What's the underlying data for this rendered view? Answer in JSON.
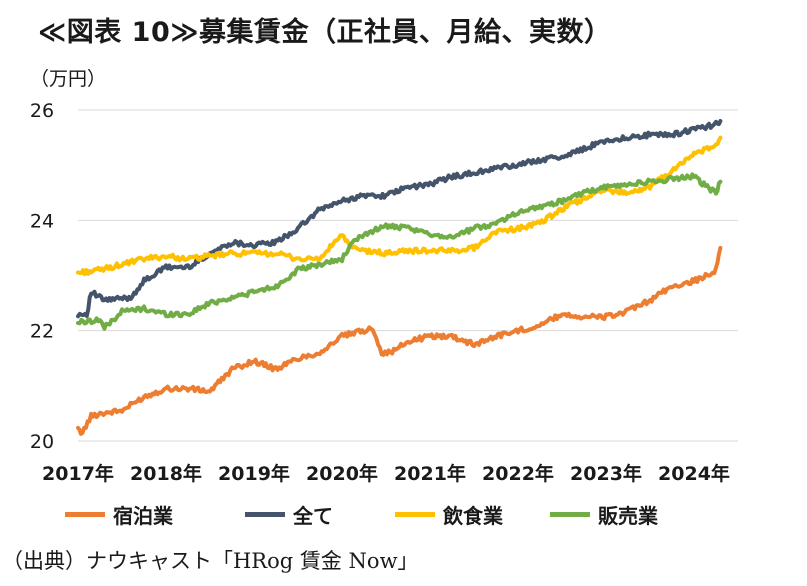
{
  "header": {
    "title": "≪図表 10≫募集賃金（正社員、月給、実数）",
    "unit": "（万円）",
    "source": "（出典）ナウキャスト「HRog 賃金 Now」"
  },
  "chart_data": {
    "type": "line",
    "title": "≪図表 10≫募集賃金（正社員、月給、実数）",
    "ylabel": "（万円）",
    "xlabel": "",
    "ylim": [
      20,
      26
    ],
    "yticks": [
      20,
      22,
      24,
      26
    ],
    "xlim": [
      2017.0,
      2024.5
    ],
    "x_tick_labels": [
      "2017年",
      "2018年",
      "2019年",
      "2020年",
      "2021年",
      "2022年",
      "2023年",
      "2024年"
    ],
    "x_tick_values": [
      2017.0,
      2018.0,
      2019.0,
      2020.0,
      2021.0,
      2022.0,
      2023.0,
      2024.0
    ],
    "grid": "horizontal",
    "legend_position": "bottom",
    "series": [
      {
        "name": "宿泊業",
        "color": "#ED7D31",
        "x": [
          2017.0,
          2017.05,
          2017.15,
          2017.25,
          2017.5,
          2017.75,
          2018.0,
          2018.25,
          2018.5,
          2018.75,
          2019.0,
          2019.25,
          2019.5,
          2019.75,
          2020.0,
          2020.25,
          2020.35,
          2020.45,
          2020.55,
          2020.75,
          2021.0,
          2021.25,
          2021.5,
          2021.75,
          2022.0,
          2022.25,
          2022.5,
          2022.75,
          2023.0,
          2023.25,
          2023.5,
          2023.75,
          2024.0,
          2024.15,
          2024.25,
          2024.3
        ],
        "values": [
          20.2,
          20.15,
          20.45,
          20.5,
          20.55,
          20.8,
          20.95,
          20.95,
          20.9,
          21.3,
          21.45,
          21.3,
          21.5,
          21.6,
          21.9,
          22.0,
          22.05,
          21.6,
          21.6,
          21.8,
          21.9,
          21.9,
          21.75,
          21.9,
          22.0,
          22.1,
          22.3,
          22.25,
          22.25,
          22.35,
          22.55,
          22.8,
          22.9,
          23.0,
          23.1,
          23.5
        ]
      },
      {
        "name": "全て",
        "color": "#44546A",
        "x": [
          2017.0,
          2017.1,
          2017.15,
          2017.3,
          2017.6,
          2017.75,
          2018.0,
          2018.25,
          2018.5,
          2018.75,
          2019.0,
          2019.25,
          2019.5,
          2019.75,
          2020.0,
          2020.25,
          2020.5,
          2020.75,
          2021.0,
          2021.25,
          2021.5,
          2021.75,
          2022.0,
          2022.25,
          2022.5,
          2022.75,
          2023.0,
          2023.25,
          2023.5,
          2023.75,
          2024.0,
          2024.15,
          2024.25,
          2024.3
        ],
        "values": [
          22.3,
          22.3,
          22.7,
          22.55,
          22.6,
          22.9,
          23.15,
          23.15,
          23.4,
          23.6,
          23.55,
          23.6,
          23.85,
          24.2,
          24.35,
          24.45,
          24.45,
          24.6,
          24.65,
          24.8,
          24.85,
          24.95,
          25.0,
          25.1,
          25.15,
          25.3,
          25.45,
          25.5,
          25.55,
          25.55,
          25.65,
          25.7,
          25.75,
          25.8
        ]
      },
      {
        "name": "飲食業",
        "color": "#FFC000",
        "x": [
          2017.0,
          2017.25,
          2017.5,
          2017.75,
          2018.0,
          2018.25,
          2018.5,
          2018.75,
          2019.0,
          2019.25,
          2019.5,
          2019.75,
          2020.0,
          2020.1,
          2020.25,
          2020.5,
          2020.75,
          2021.0,
          2021.25,
          2021.5,
          2021.75,
          2022.0,
          2022.25,
          2022.5,
          2022.75,
          2023.0,
          2023.25,
          2023.5,
          2023.75,
          2024.0,
          2024.15,
          2024.25,
          2024.3
        ],
        "values": [
          23.05,
          23.1,
          23.2,
          23.3,
          23.35,
          23.3,
          23.35,
          23.4,
          23.4,
          23.4,
          23.3,
          23.3,
          23.75,
          23.5,
          23.45,
          23.4,
          23.45,
          23.45,
          23.45,
          23.5,
          23.8,
          23.85,
          23.95,
          24.2,
          24.4,
          24.55,
          24.5,
          24.6,
          24.9,
          25.2,
          25.3,
          25.35,
          25.5
        ]
      },
      {
        "name": "販売業",
        "color": "#70AD47",
        "x": [
          2017.0,
          2017.25,
          2017.3,
          2017.5,
          2017.75,
          2018.0,
          2018.25,
          2018.5,
          2018.75,
          2019.0,
          2019.25,
          2019.5,
          2019.75,
          2020.0,
          2020.1,
          2020.25,
          2020.5,
          2020.75,
          2021.0,
          2021.25,
          2021.5,
          2021.75,
          2022.0,
          2022.25,
          2022.5,
          2022.75,
          2023.0,
          2023.25,
          2023.5,
          2023.75,
          2024.0,
          2024.15,
          2024.25,
          2024.3
        ],
        "values": [
          22.15,
          22.2,
          22.05,
          22.35,
          22.4,
          22.3,
          22.3,
          22.5,
          22.6,
          22.7,
          22.8,
          23.1,
          23.2,
          23.3,
          23.55,
          23.75,
          23.9,
          23.85,
          23.75,
          23.7,
          23.85,
          23.95,
          24.15,
          24.25,
          24.35,
          24.5,
          24.6,
          24.65,
          24.7,
          24.75,
          24.8,
          24.6,
          24.5,
          24.7
        ]
      }
    ]
  }
}
